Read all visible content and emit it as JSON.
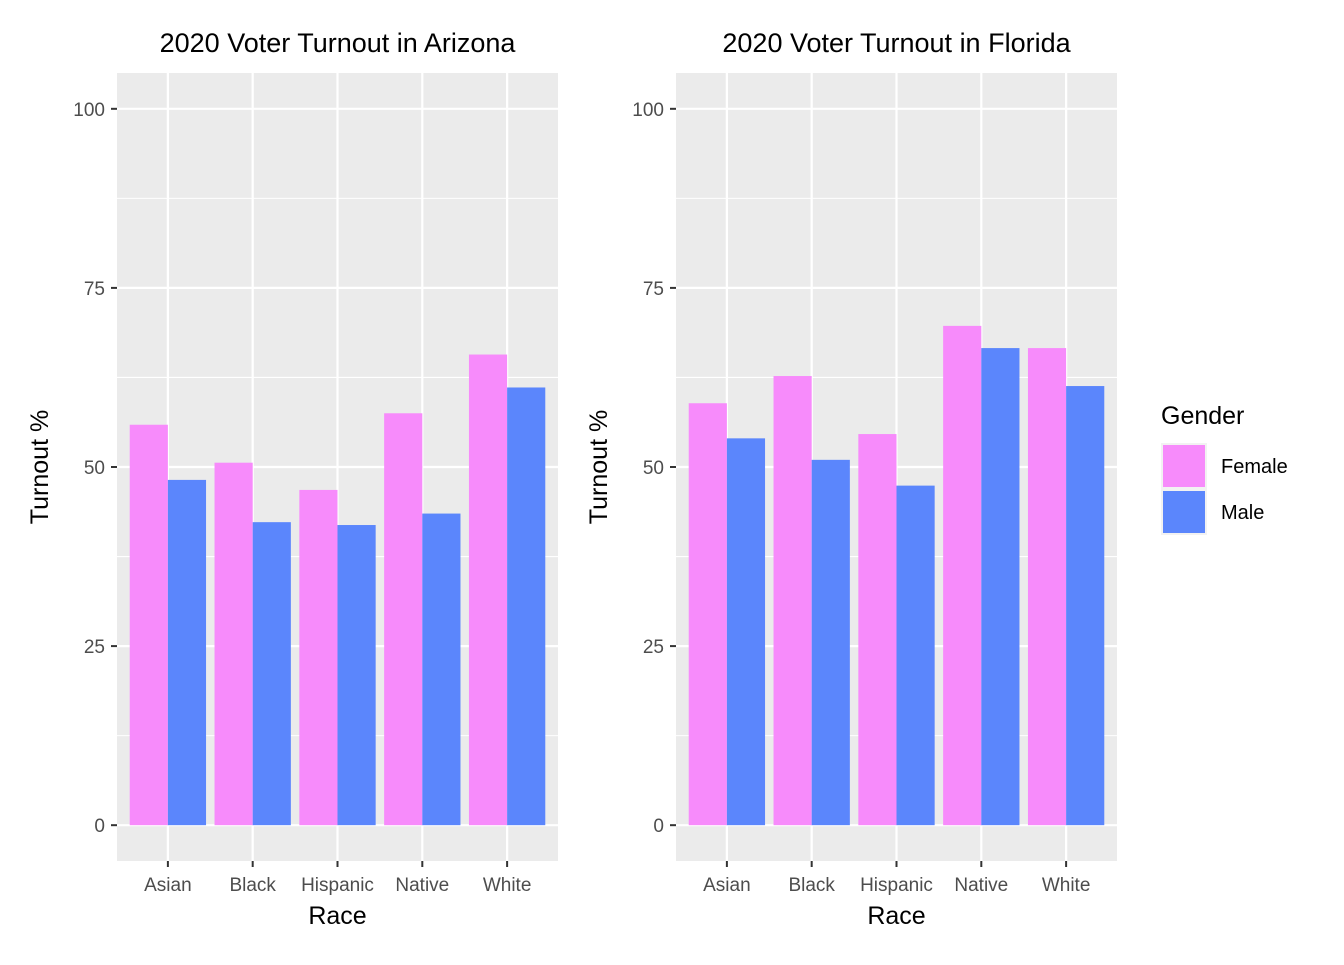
{
  "chart_data": [
    {
      "type": "bar",
      "title": "2020 Voter Turnout in Arizona",
      "xlabel": "Race",
      "ylabel": "Turnout %",
      "categories": [
        "Asian",
        "Black",
        "Hispanic",
        "Native",
        "White"
      ],
      "ylim": [
        -5,
        105
      ],
      "yticks": [
        0,
        25,
        50,
        75,
        100
      ],
      "grid": true,
      "series": [
        {
          "name": "Female",
          "color": "#F78BFB",
          "values": [
            55.9,
            50.6,
            46.8,
            57.5,
            65.7
          ]
        },
        {
          "name": "Male",
          "color": "#5B86FC",
          "values": [
            48.2,
            42.3,
            41.9,
            43.5,
            61.1
          ]
        }
      ]
    },
    {
      "type": "bar",
      "title": "2020 Voter Turnout in Florida",
      "xlabel": "Race",
      "ylabel": "Turnout %",
      "categories": [
        "Asian",
        "Black",
        "Hispanic",
        "Native",
        "White"
      ],
      "ylim": [
        -5,
        105
      ],
      "yticks": [
        0,
        25,
        50,
        75,
        100
      ],
      "grid": true,
      "series": [
        {
          "name": "Female",
          "color": "#F78BFB",
          "values": [
            58.9,
            62.7,
            54.6,
            69.7,
            66.6
          ]
        },
        {
          "name": "Male",
          "color": "#5B86FC",
          "values": [
            54.0,
            51.0,
            47.4,
            66.6,
            61.3
          ]
        }
      ]
    }
  ],
  "legend": {
    "title": "Gender",
    "placement": "right",
    "items": [
      {
        "label": "Female",
        "color": "#F78BFB"
      },
      {
        "label": "Male",
        "color": "#5B86FC"
      }
    ]
  }
}
